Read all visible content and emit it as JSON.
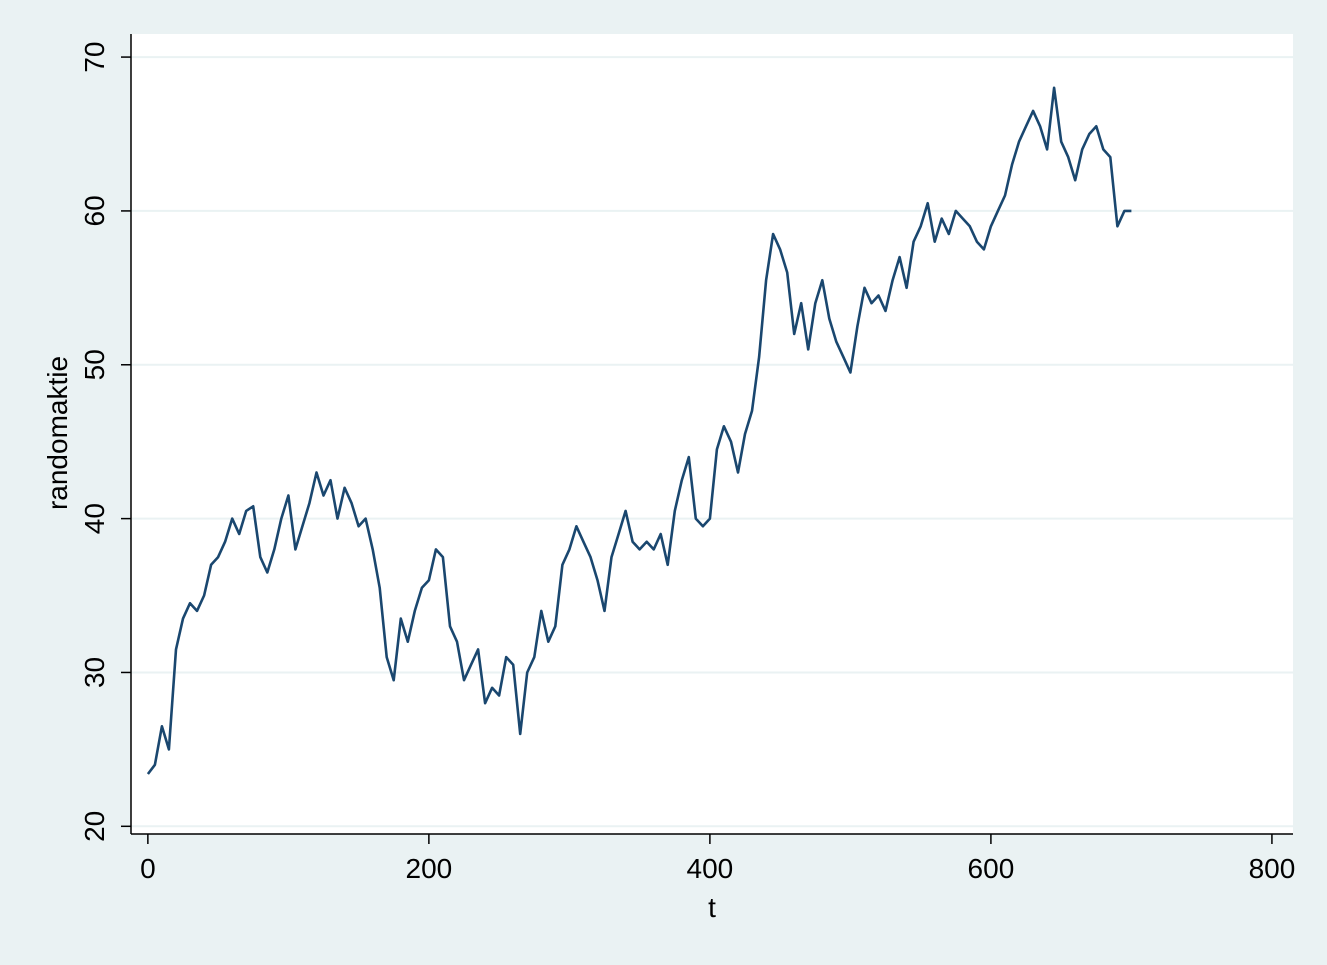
{
  "chart_data": {
    "type": "line",
    "xlabel": "t",
    "ylabel": "randomaktie",
    "xlim": [
      -12,
      815
    ],
    "ylim": [
      19.5,
      71.5
    ],
    "xticks": [
      0,
      200,
      400,
      600,
      800
    ],
    "yticks": [
      20,
      30,
      40,
      50,
      60,
      70
    ],
    "grid": "horizontal",
    "colors": {
      "line": "#1a476f",
      "background": "#eaf2f3",
      "plot_background": "#ffffff",
      "grid": "#eaf2f3"
    },
    "series": [
      {
        "x": [
          0,
          5,
          10,
          15,
          20,
          25,
          30,
          35,
          40,
          45,
          50,
          55,
          60,
          65,
          70,
          75,
          80,
          85,
          90,
          95,
          100,
          105,
          110,
          115,
          120,
          125,
          130,
          135,
          140,
          145,
          150,
          155,
          160,
          165,
          170,
          175,
          180,
          185,
          190,
          195,
          200,
          205,
          210,
          215,
          220,
          225,
          230,
          235,
          240,
          245,
          250,
          255,
          260,
          265,
          270,
          275,
          280,
          285,
          290,
          295,
          300,
          305,
          310,
          315,
          320,
          325,
          330,
          335,
          340,
          345,
          350,
          355,
          360,
          365,
          370,
          375,
          380,
          385,
          390,
          395,
          400,
          405,
          410,
          415,
          420,
          425,
          430,
          435,
          440,
          445,
          450,
          455,
          460,
          465,
          470,
          475,
          480,
          485,
          490,
          495,
          500,
          505,
          510,
          515,
          520,
          525,
          530,
          535,
          540,
          545,
          550,
          555,
          560,
          565,
          570,
          575,
          580,
          585,
          590,
          595,
          600,
          605,
          610,
          615,
          620,
          625,
          630,
          635,
          640,
          645,
          650,
          655,
          660,
          665,
          670,
          675,
          680,
          685,
          690,
          695,
          700
        ],
        "values": [
          23.4,
          24.0,
          26.5,
          25.0,
          31.5,
          33.5,
          34.5,
          34.0,
          35.0,
          37.0,
          37.5,
          38.5,
          40.0,
          39.0,
          40.5,
          40.8,
          37.5,
          36.5,
          38.0,
          40.0,
          41.5,
          38.0,
          39.5,
          41.0,
          43.0,
          41.5,
          42.5,
          40.0,
          42.0,
          41.0,
          39.5,
          40.0,
          38.0,
          35.5,
          31.0,
          29.5,
          33.5,
          32.0,
          34.0,
          35.5,
          36.0,
          38.0,
          37.5,
          33.0,
          32.0,
          29.5,
          30.5,
          31.5,
          28.0,
          29.0,
          28.5,
          31.0,
          30.5,
          26.0,
          30.0,
          31.0,
          34.0,
          32.0,
          33.0,
          37.0,
          38.0,
          39.5,
          38.5,
          37.5,
          36.0,
          34.0,
          37.5,
          39.0,
          40.5,
          38.5,
          38.0,
          38.5,
          38.0,
          39.0,
          37.0,
          40.5,
          42.5,
          44.0,
          40.0,
          39.5,
          40.0,
          44.5,
          46.0,
          45.0,
          43.0,
          45.5,
          47.0,
          50.5,
          55.5,
          58.5,
          57.5,
          56.0,
          52.0,
          54.0,
          51.0,
          54.0,
          55.5,
          53.0,
          51.5,
          50.5,
          49.5,
          52.5,
          55.0,
          54.0,
          54.5,
          53.5,
          55.5,
          57.0,
          55.0,
          58.0,
          59.0,
          60.5,
          58.0,
          59.5,
          58.5,
          60.0,
          59.5,
          59.0,
          58.0,
          57.5,
          59.0,
          60.0,
          61.0,
          63.0,
          64.5,
          65.5,
          66.5,
          65.5,
          64.0,
          68.0,
          64.5,
          63.5,
          62.0,
          64.0,
          65.0,
          65.5,
          64.0,
          63.5,
          59.0,
          60.0,
          60.0
        ]
      }
    ]
  }
}
